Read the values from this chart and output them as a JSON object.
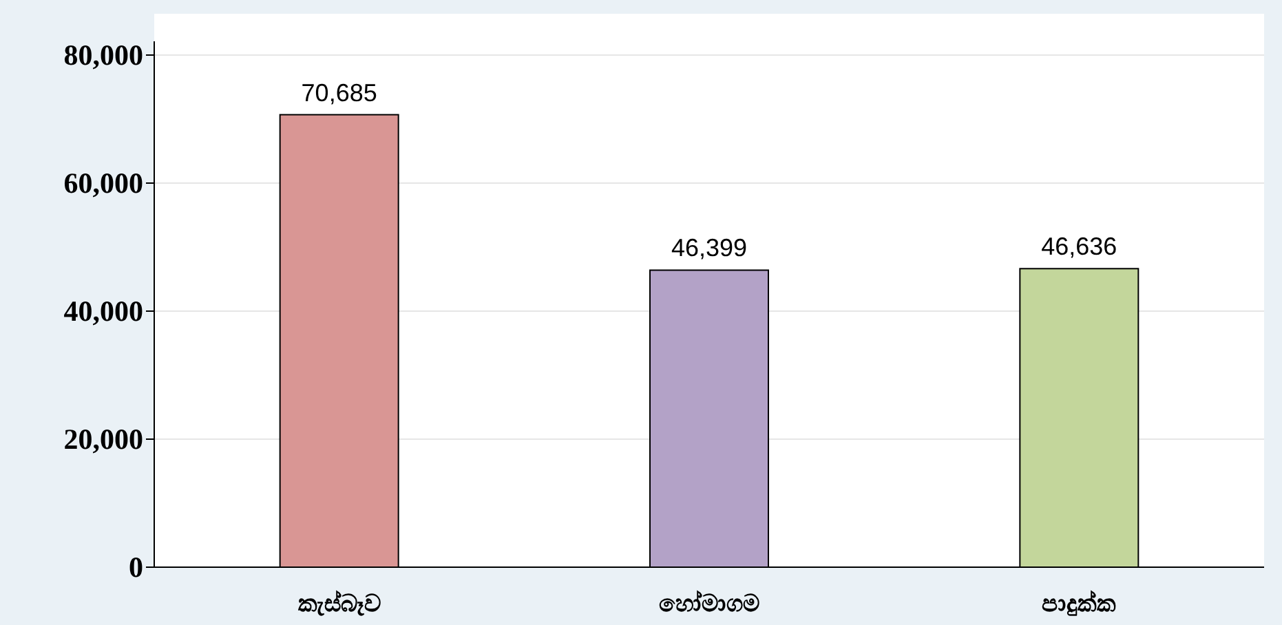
{
  "chart_data": {
    "type": "bar",
    "categories": [
      "කැස්බෑව",
      "හෝමාගම",
      "පාදුක්ක"
    ],
    "values": [
      70685,
      46399,
      46636
    ],
    "colors": [
      "#d99694",
      "#b3a2c7",
      "#c3d69b"
    ],
    "ylim": [
      0,
      80000
    ],
    "yticks": [
      {
        "value": 0,
        "label": "0"
      },
      {
        "value": 20000,
        "label": "20,000"
      },
      {
        "value": 40000,
        "label": "40,000"
      },
      {
        "value": 60000,
        "label": "60,000"
      },
      {
        "value": 80000,
        "label": "80,000"
      }
    ],
    "grid": "y",
    "data_labels": true,
    "value_labels": [
      "70,685",
      "46,399",
      "46,636"
    ]
  }
}
